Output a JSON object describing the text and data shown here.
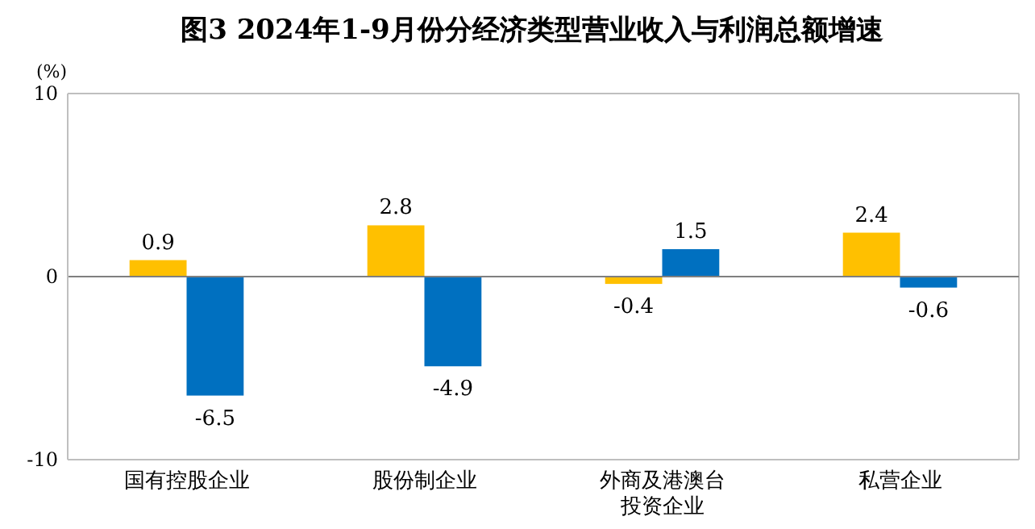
{
  "chart_data": {
    "type": "bar",
    "title": "图3 2024年1-9月份分经济类型营业收入与利润总额增速",
    "ylabel": "(%)",
    "categories": [
      "国有控股企业",
      "股份制企业",
      "外商及港澳台投资企业",
      "私营企业"
    ],
    "series": [
      {
        "color": "#ffc000",
        "values": [
          0.9,
          2.8,
          -0.4,
          2.4
        ]
      },
      {
        "color": "#0070c0",
        "values": [
          -6.5,
          -4.9,
          1.5,
          -0.6
        ]
      }
    ],
    "ylim": [
      -10,
      10
    ],
    "yticks": [
      -10,
      0,
      10
    ],
    "data_labels": true,
    "grid": "y",
    "legend": false
  }
}
